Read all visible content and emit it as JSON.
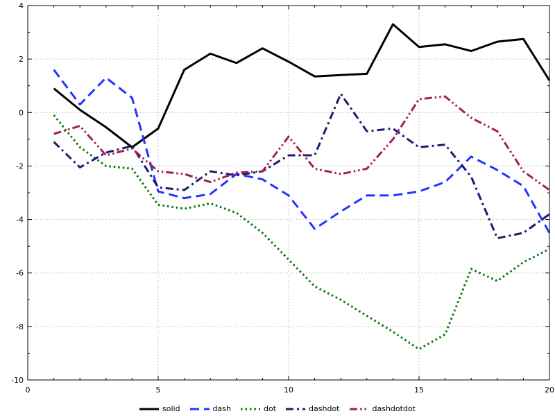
{
  "chart_data": {
    "type": "line",
    "title": "",
    "xlabel": "",
    "ylabel": "",
    "xlim": [
      0,
      20
    ],
    "ylim": [
      -10,
      4
    ],
    "x_ticks": [
      0,
      5,
      10,
      15,
      20
    ],
    "y_ticks": [
      -10,
      -8,
      -6,
      -4,
      -2,
      0,
      2,
      4
    ],
    "grid": true,
    "legend_position": "bottom-center",
    "grid_color": "#b3b3b3",
    "axis_color": "#000000",
    "line_width": 3,
    "x": [
      1,
      2,
      3,
      4,
      5,
      6,
      7,
      8,
      9,
      10,
      11,
      12,
      13,
      14,
      15,
      16,
      17,
      18,
      19,
      20
    ],
    "series": [
      {
        "name": "solid",
        "color": "#000000",
        "dash": "solid",
        "values": [
          0.9,
          0.1,
          -0.55,
          -1.3,
          -0.6,
          1.6,
          2.2,
          1.85,
          2.4,
          1.9,
          1.35,
          1.4,
          1.45,
          3.3,
          2.45,
          2.55,
          2.3,
          2.65,
          2.75,
          1.2
        ]
      },
      {
        "name": "dash",
        "color": "#2233ff",
        "dash": "dash",
        "values": [
          1.6,
          0.3,
          1.3,
          0.55,
          -2.95,
          -3.2,
          -3.05,
          -2.3,
          -2.5,
          -3.1,
          -4.35,
          -3.7,
          -3.1,
          -3.1,
          -2.95,
          -2.6,
          -1.65,
          -2.15,
          -2.75,
          -4.5
        ]
      },
      {
        "name": "dot",
        "color": "#007700",
        "dash": "dot",
        "values": [
          -0.1,
          -1.3,
          -2.0,
          -2.1,
          -3.45,
          -3.6,
          -3.4,
          -3.75,
          -4.5,
          -5.5,
          -6.5,
          -7.0,
          -7.6,
          -8.2,
          -8.85,
          -8.3,
          -5.85,
          -6.3,
          -5.6,
          -5.1
        ]
      },
      {
        "name": "dashdot",
        "color": "#1a1a75",
        "dash": "dashdot",
        "values": [
          -1.1,
          -2.05,
          -1.5,
          -1.25,
          -2.8,
          -2.9,
          -2.2,
          -2.35,
          -2.2,
          -1.6,
          -1.6,
          0.7,
          -0.7,
          -0.6,
          -1.3,
          -1.2,
          -2.4,
          -4.7,
          -4.5,
          -3.8
        ]
      },
      {
        "name": "dashdotdot",
        "color": "#a01f50",
        "dash": "dashdotdot",
        "values": [
          -0.8,
          -0.5,
          -1.6,
          -1.35,
          -2.2,
          -2.3,
          -2.6,
          -2.25,
          -2.2,
          -0.9,
          -2.1,
          -2.3,
          -2.1,
          -1.0,
          0.5,
          0.6,
          -0.2,
          -0.7,
          -2.2,
          -2.9
        ]
      }
    ]
  }
}
